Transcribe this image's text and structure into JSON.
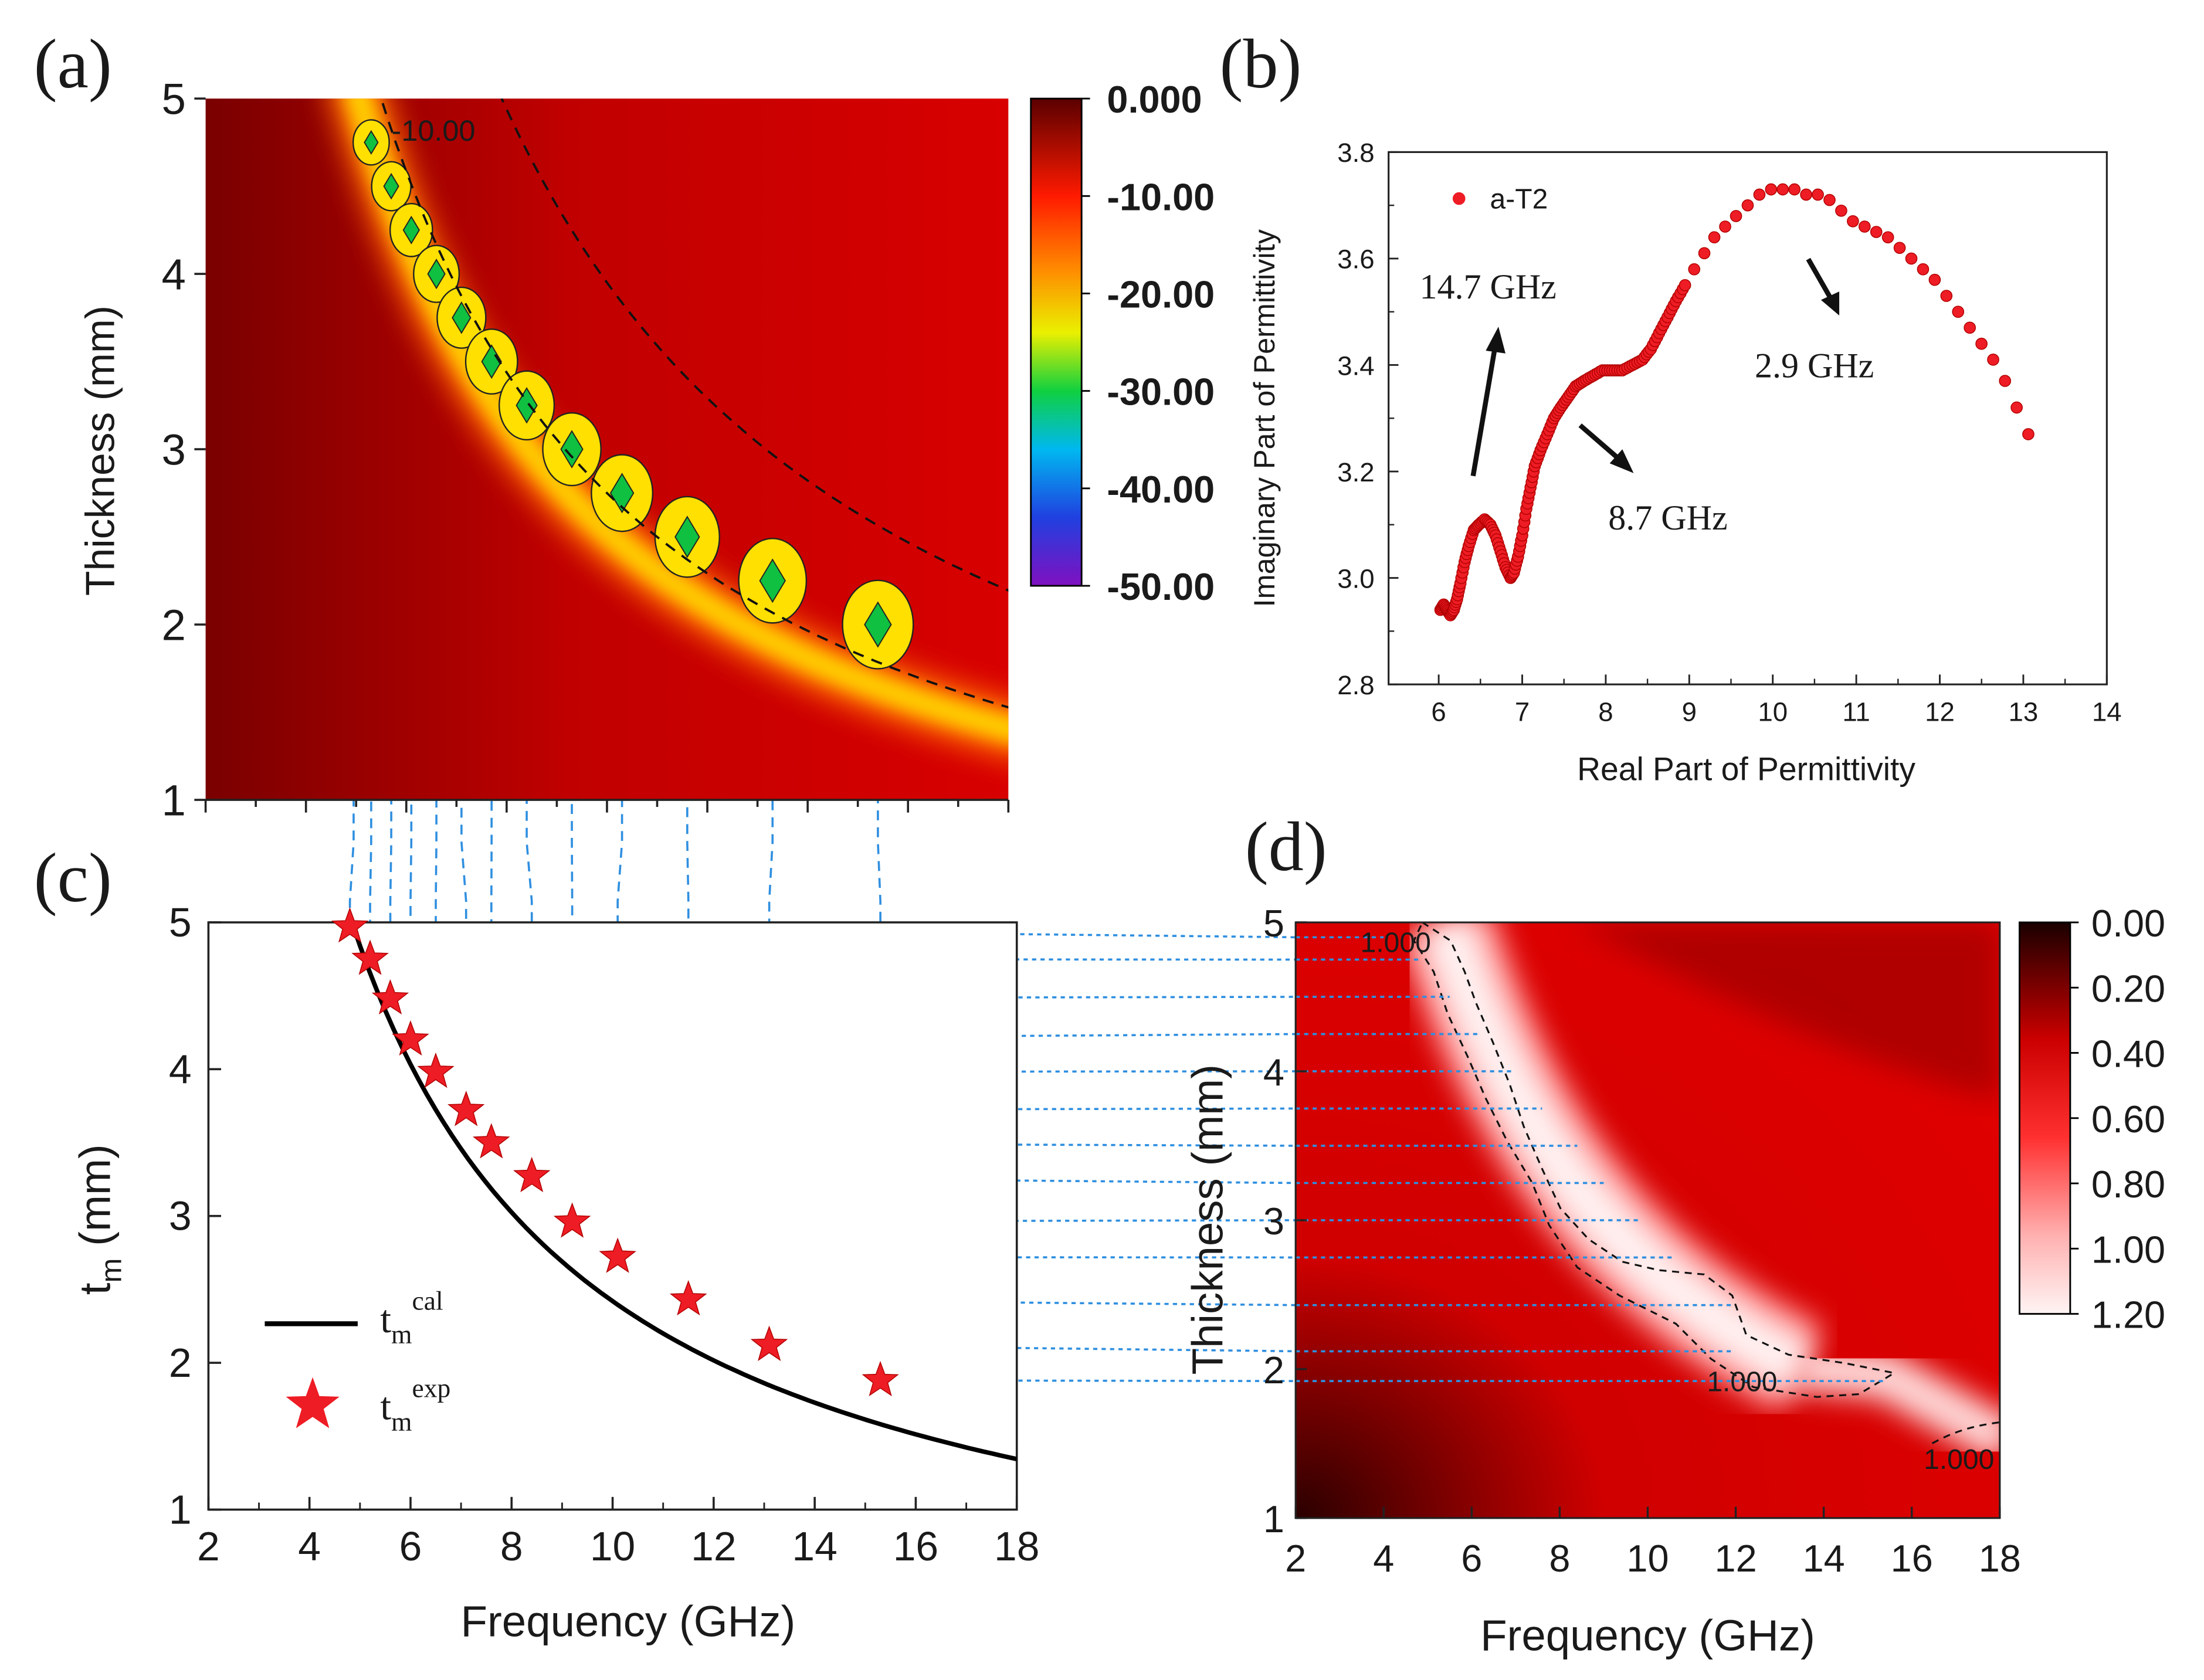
{
  "panel_labels": {
    "a": "(a)",
    "b": "(b)",
    "c": "(c)",
    "d": "(d)"
  },
  "colors": {
    "star": "#ee1c24",
    "guide": "#2f8fe0",
    "dot": "#ee1c24",
    "curve": "#000000"
  },
  "chart_data": [
    {
      "id": "a",
      "type": "heatmap",
      "title": "",
      "xlabel": "",
      "ylabel": "Thickness (mm)",
      "xlim": [
        2,
        18
      ],
      "ylim": [
        1,
        5
      ],
      "yticks": [
        "1",
        "2",
        "3",
        "4",
        "5"
      ],
      "colorbar": {
        "labels": [
          "0.000",
          "-10.00",
          "-20.00",
          "-30.00",
          "-40.00",
          "-50.00"
        ],
        "range": [
          0,
          -50
        ]
      },
      "contour_label": "-10.00",
      "minima": [
        {
          "f": 5.3,
          "t": 4.75
        },
        {
          "f": 5.7,
          "t": 4.5
        },
        {
          "f": 6.1,
          "t": 4.25
        },
        {
          "f": 6.6,
          "t": 4.0
        },
        {
          "f": 7.1,
          "t": 3.75
        },
        {
          "f": 7.7,
          "t": 3.5
        },
        {
          "f": 8.4,
          "t": 3.25
        },
        {
          "f": 9.3,
          "t": 3.0
        },
        {
          "f": 10.3,
          "t": 2.75
        },
        {
          "f": 11.6,
          "t": 2.5
        },
        {
          "f": 13.3,
          "t": 2.25
        },
        {
          "f": 15.4,
          "t": 2.0
        }
      ]
    },
    {
      "id": "b",
      "type": "scatter",
      "title": "",
      "xlabel": "Real Part of Permittivity",
      "ylabel": "Imaginary Part of Permittivity",
      "xlim": [
        5.4,
        14
      ],
      "ylim": [
        2.8,
        3.8
      ],
      "xticks": [
        "6",
        "7",
        "8",
        "9",
        "10",
        "11",
        "12",
        "13",
        "14"
      ],
      "yticks": [
        "2.8",
        "3.0",
        "3.2",
        "3.4",
        "3.6",
        "3.8"
      ],
      "legend": "a-T2",
      "annotations": [
        "14.7 GHz",
        "8.7 GHz",
        "2.9 GHz"
      ],
      "points": [
        [
          6.02,
          2.94
        ],
        [
          6.06,
          2.95
        ],
        [
          6.1,
          2.94
        ],
        [
          6.14,
          2.93
        ],
        [
          6.18,
          2.94
        ],
        [
          6.22,
          2.96
        ],
        [
          6.26,
          2.99
        ],
        [
          6.31,
          3.03
        ],
        [
          6.36,
          3.06
        ],
        [
          6.42,
          3.09
        ],
        [
          6.48,
          3.1
        ],
        [
          6.55,
          3.11
        ],
        [
          6.62,
          3.1
        ],
        [
          6.68,
          3.08
        ],
        [
          6.74,
          3.05
        ],
        [
          6.8,
          3.02
        ],
        [
          6.86,
          3.0
        ],
        [
          6.9,
          3.01
        ],
        [
          6.95,
          3.04
        ],
        [
          7.0,
          3.08
        ],
        [
          7.05,
          3.13
        ],
        [
          7.1,
          3.17
        ],
        [
          7.15,
          3.21
        ],
        [
          7.22,
          3.24
        ],
        [
          7.3,
          3.27
        ],
        [
          7.38,
          3.3
        ],
        [
          7.46,
          3.32
        ],
        [
          7.55,
          3.34
        ],
        [
          7.64,
          3.36
        ],
        [
          7.74,
          3.37
        ],
        [
          7.85,
          3.38
        ],
        [
          7.96,
          3.39
        ],
        [
          8.08,
          3.39
        ],
        [
          8.2,
          3.39
        ],
        [
          8.32,
          3.4
        ],
        [
          8.44,
          3.41
        ],
        [
          8.54,
          3.43
        ],
        [
          8.64,
          3.46
        ],
        [
          8.74,
          3.49
        ],
        [
          8.84,
          3.52
        ],
        [
          8.95,
          3.55
        ],
        [
          9.06,
          3.58
        ],
        [
          9.18,
          3.61
        ],
        [
          9.3,
          3.64
        ],
        [
          9.43,
          3.66
        ],
        [
          9.56,
          3.68
        ],
        [
          9.7,
          3.7
        ],
        [
          9.84,
          3.72
        ],
        [
          9.98,
          3.73
        ],
        [
          10.12,
          3.73
        ],
        [
          10.26,
          3.73
        ],
        [
          10.4,
          3.72
        ],
        [
          10.54,
          3.72
        ],
        [
          10.68,
          3.71
        ],
        [
          10.82,
          3.69
        ],
        [
          10.96,
          3.67
        ],
        [
          11.1,
          3.66
        ],
        [
          11.24,
          3.65
        ],
        [
          11.38,
          3.64
        ],
        [
          11.52,
          3.62
        ],
        [
          11.66,
          3.6
        ],
        [
          11.8,
          3.58
        ],
        [
          11.94,
          3.56
        ],
        [
          12.08,
          3.53
        ],
        [
          12.22,
          3.5
        ],
        [
          12.36,
          3.47
        ],
        [
          12.5,
          3.44
        ],
        [
          12.64,
          3.41
        ],
        [
          12.78,
          3.37
        ],
        [
          12.92,
          3.32
        ],
        [
          13.06,
          3.27
        ]
      ]
    },
    {
      "id": "c",
      "type": "line",
      "title": "",
      "xlabel": "Frequency (GHz)",
      "ylabel": "t",
      "ylabel_sub": "m",
      "ylabel_rest": " (mm)",
      "xlim": [
        2,
        18
      ],
      "ylim": [
        1,
        5
      ],
      "xticks": [
        "2",
        "4",
        "6",
        "8",
        "10",
        "12",
        "14",
        "16",
        "18"
      ],
      "yticks": [
        "1",
        "2",
        "3",
        "4",
        "5"
      ],
      "series": [
        {
          "name": "t_m^cal",
          "base": "t",
          "sub": "m",
          "sup": "cal",
          "formula_k": 24.2,
          "x": [
            4.84,
            18
          ]
        },
        {
          "name": "t_m^exp",
          "base": "t",
          "sub": "m",
          "sup": "exp",
          "points": [
            [
              4.8,
              4.97
            ],
            [
              5.2,
              4.75
            ],
            [
              5.6,
              4.48
            ],
            [
              6.0,
              4.2
            ],
            [
              6.5,
              3.98
            ],
            [
              7.1,
              3.72
            ],
            [
              7.6,
              3.5
            ],
            [
              8.4,
              3.27
            ],
            [
              9.2,
              2.96
            ],
            [
              10.1,
              2.72
            ],
            [
              11.5,
              2.43
            ],
            [
              13.1,
              2.12
            ],
            [
              15.3,
              1.88
            ]
          ]
        }
      ]
    },
    {
      "id": "d",
      "type": "heatmap",
      "title": "",
      "xlabel": "Frequency (GHz)",
      "ylabel": "Thickness (mm)",
      "xlim": [
        2,
        18
      ],
      "ylim": [
        1,
        5
      ],
      "xticks": [
        "2",
        "4",
        "6",
        "8",
        "10",
        "12",
        "14",
        "16",
        "18"
      ],
      "yticks": [
        "1",
        "2",
        "3",
        "4",
        "5"
      ],
      "colorbar": {
        "labels": [
          "0.00",
          "0.20",
          "0.40",
          "0.60",
          "0.80",
          "1.00",
          "1.20"
        ],
        "range": [
          0,
          1.2
        ]
      },
      "contour_labels": [
        "1.000",
        "1.000",
        "1.000"
      ]
    }
  ]
}
